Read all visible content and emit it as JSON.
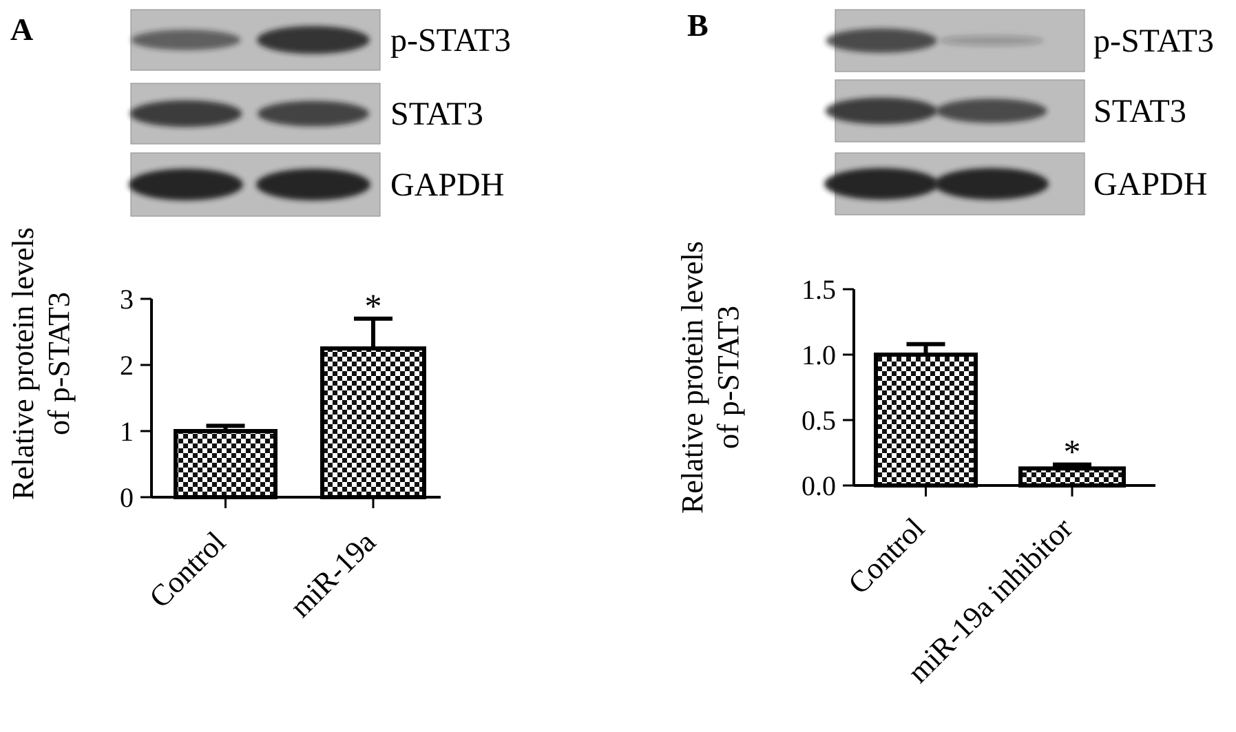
{
  "figure": {
    "panels": [
      {
        "letter": "A",
        "blot": {
          "lane_labels": [
            "p-STAT3",
            "STAT3",
            "GAPDH"
          ],
          "band_intensity": [
            [
              0.55,
              0.85
            ],
            [
              0.8,
              0.75
            ],
            [
              1.0,
              1.0
            ]
          ]
        }
      },
      {
        "letter": "B",
        "blot": {
          "lane_labels": [
            "p-STAT3",
            "STAT3",
            "GAPDH"
          ],
          "band_intensity": [
            [
              0.7,
              0.12
            ],
            [
              0.8,
              0.7
            ],
            [
              1.0,
              1.0
            ]
          ]
        }
      }
    ]
  },
  "chart_data": [
    {
      "type": "bar",
      "panel": "A",
      "ylabel_lines": [
        "Relative protein levels",
        "of p-STAT3"
      ],
      "categories": [
        "Control",
        "miR-19a"
      ],
      "values": [
        1.0,
        2.25
      ],
      "errors": [
        0.08,
        0.45
      ],
      "significance": [
        "",
        "*"
      ],
      "ylim": [
        0,
        3
      ],
      "yticks": [
        0,
        1,
        2,
        3
      ],
      "ytick_labels": [
        "0",
        "1",
        "2",
        "3"
      ],
      "grid": false,
      "fill": "checkerboard"
    },
    {
      "type": "bar",
      "panel": "B",
      "ylabel_lines": [
        "Relative protein levels",
        "of p-STAT3"
      ],
      "categories": [
        "Control",
        "miR-19a inhibitor"
      ],
      "values": [
        1.0,
        0.13
      ],
      "errors": [
        0.08,
        0.03
      ],
      "significance": [
        "",
        "*"
      ],
      "ylim": [
        0,
        1.5
      ],
      "yticks": [
        0,
        0.5,
        1.0,
        1.5
      ],
      "ytick_labels": [
        "0.0",
        "0.5",
        "1.0",
        "1.5"
      ],
      "grid": false,
      "fill": "checkerboard"
    }
  ]
}
